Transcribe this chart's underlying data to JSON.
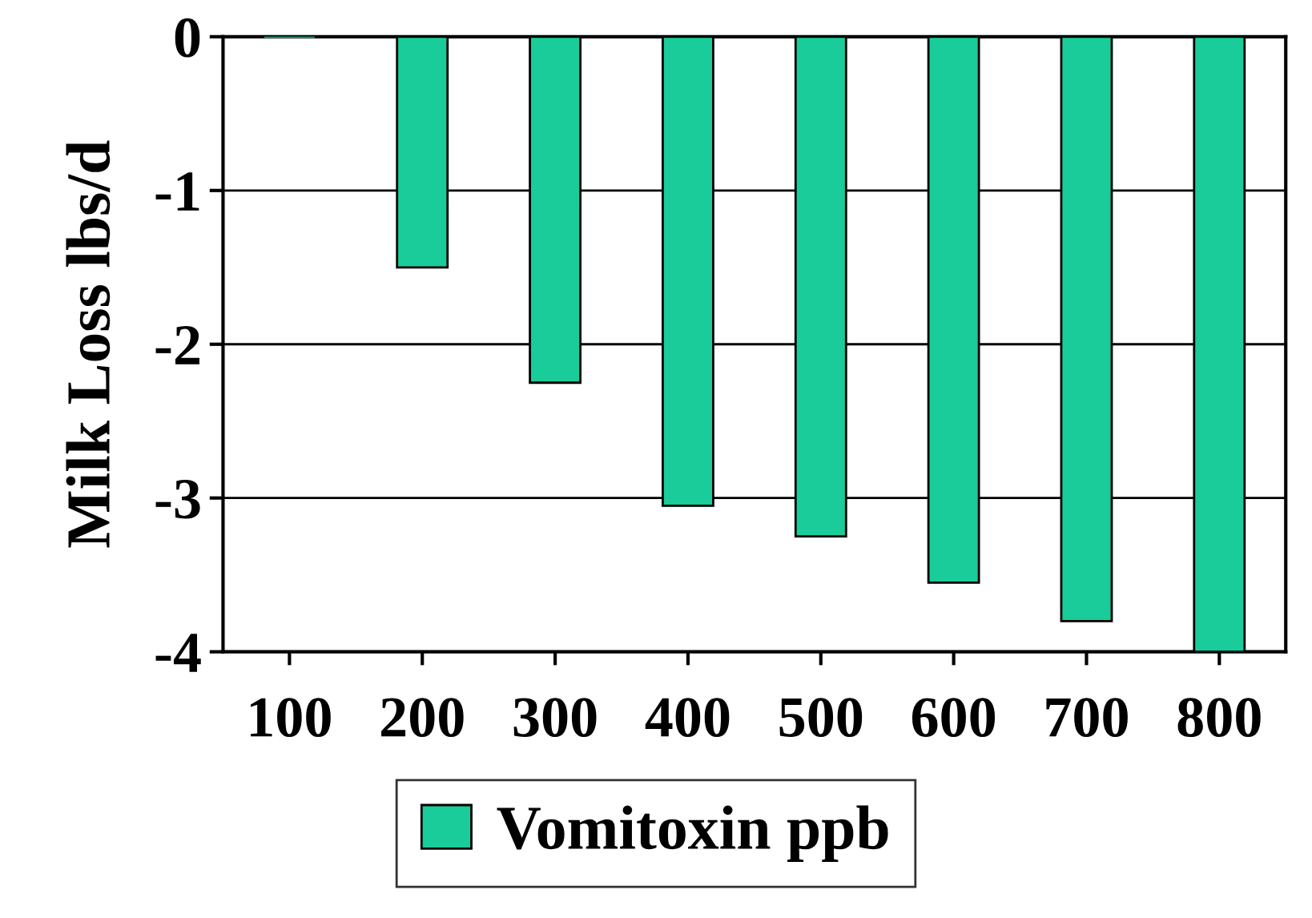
{
  "chart_data": {
    "type": "bar",
    "ylabel": "Milk Loss lbs/d",
    "categories": [
      "100",
      "200",
      "300",
      "400",
      "500",
      "600",
      "700",
      "800"
    ],
    "series": [
      {
        "name": "Vomitoxin ppb",
        "color": "#19cc99",
        "values": [
          0,
          -1.5,
          -2.25,
          -3.05,
          -3.25,
          -3.55,
          -3.8,
          -4.0
        ]
      }
    ],
    "ylim": [
      -4,
      0
    ],
    "yticks": [
      -4,
      -3,
      -2,
      -1,
      0
    ],
    "grid": "y",
    "legend": "bottom"
  }
}
